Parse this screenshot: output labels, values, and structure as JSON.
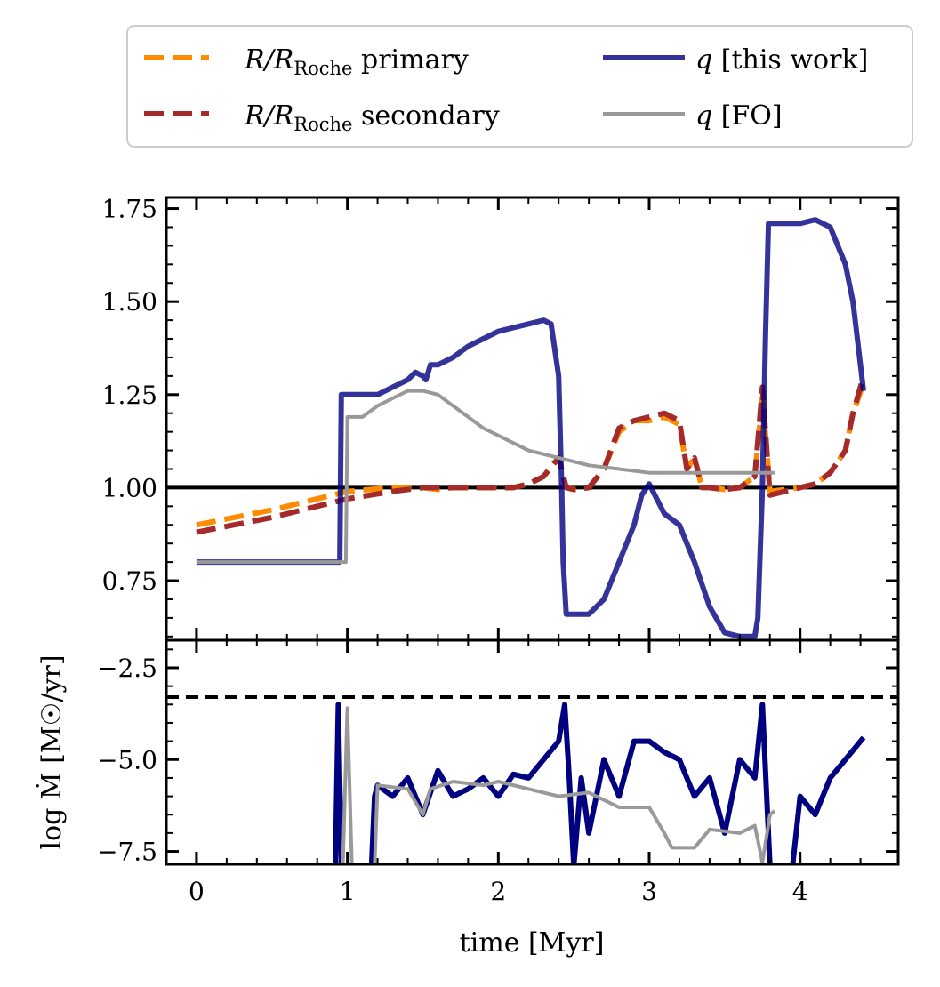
{
  "chart_data": [
    {
      "panel": "top",
      "type": "line",
      "xlim": [
        -0.2,
        4.65
      ],
      "ylim": [
        0.59,
        1.78
      ],
      "xticks": [
        0,
        1,
        2,
        3,
        4
      ],
      "yticks": [
        0.75,
        1.0,
        1.25,
        1.5,
        1.75
      ],
      "ytick_labels": [
        "0.75",
        "1.00",
        "1.25",
        "1.50",
        "1.75"
      ],
      "reference_line": {
        "y": 1.0,
        "color": "#000000",
        "style": "solid"
      },
      "series": [
        {
          "name": "R/R_Roche primary",
          "color": "#ff8c00",
          "style": "dashed",
          "points": [
            [
              0,
              0.9
            ],
            [
              0.5,
              0.94
            ],
            [
              1.0,
              0.99
            ],
            [
              1.3,
              1.0
            ],
            [
              1.5,
              1.0
            ],
            [
              1.6,
              0.995
            ],
            [
              1.7,
              1.0
            ],
            [
              1.9,
              1.0
            ],
            [
              2.0,
              1.0
            ],
            [
              2.1,
              1.0
            ],
            [
              2.2,
              1.01
            ],
            [
              2.3,
              1.03
            ],
            [
              2.4,
              1.08
            ],
            [
              2.45,
              1.0
            ],
            [
              2.5,
              0.995
            ],
            [
              2.6,
              1.0
            ],
            [
              2.7,
              1.05
            ],
            [
              2.8,
              1.15
            ],
            [
              2.9,
              1.18
            ],
            [
              3.0,
              1.18
            ],
            [
              3.1,
              1.19
            ],
            [
              3.2,
              1.17
            ],
            [
              3.25,
              1.05
            ],
            [
              3.3,
              1.08
            ],
            [
              3.35,
              1.0
            ],
            [
              3.4,
              1.0
            ],
            [
              3.5,
              0.995
            ],
            [
              3.6,
              1.0
            ],
            [
              3.7,
              1.03
            ],
            [
              3.75,
              1.25
            ],
            [
              3.8,
              0.99
            ],
            [
              4.0,
              1.0
            ],
            [
              4.1,
              1.01
            ],
            [
              4.2,
              1.04
            ],
            [
              4.3,
              1.1
            ],
            [
              4.35,
              1.2
            ],
            [
              4.42,
              1.28
            ]
          ]
        },
        {
          "name": "R/R_Roche secondary",
          "color": "#a52a2a",
          "style": "dashed",
          "points": [
            [
              0,
              0.88
            ],
            [
              0.5,
              0.92
            ],
            [
              1.0,
              0.97
            ],
            [
              1.3,
              0.99
            ],
            [
              1.5,
              1.0
            ],
            [
              1.6,
              1.0
            ],
            [
              1.7,
              1.0
            ],
            [
              1.9,
              1.0
            ],
            [
              2.0,
              1.0
            ],
            [
              2.1,
              1.0
            ],
            [
              2.2,
              1.01
            ],
            [
              2.3,
              1.03
            ],
            [
              2.4,
              1.08
            ],
            [
              2.45,
              1.0
            ],
            [
              2.5,
              0.995
            ],
            [
              2.6,
              1.0
            ],
            [
              2.7,
              1.05
            ],
            [
              2.8,
              1.16
            ],
            [
              2.9,
              1.18
            ],
            [
              3.0,
              1.19
            ],
            [
              3.1,
              1.2
            ],
            [
              3.2,
              1.18
            ],
            [
              3.25,
              1.05
            ],
            [
              3.3,
              1.08
            ],
            [
              3.35,
              1.0
            ],
            [
              3.4,
              1.0
            ],
            [
              3.5,
              0.995
            ],
            [
              3.6,
              1.0
            ],
            [
              3.7,
              1.03
            ],
            [
              3.75,
              1.27
            ],
            [
              3.8,
              0.98
            ],
            [
              4.0,
              1.0
            ],
            [
              4.1,
              1.01
            ],
            [
              4.2,
              1.04
            ],
            [
              4.3,
              1.1
            ],
            [
              4.35,
              1.2
            ],
            [
              4.42,
              1.3
            ]
          ]
        },
        {
          "name": "q [this work]",
          "color": "#000080",
          "style": "solid",
          "points": [
            [
              0,
              0.8
            ],
            [
              0.95,
              0.8
            ],
            [
              0.96,
              1.25
            ],
            [
              1.2,
              1.25
            ],
            [
              1.3,
              1.27
            ],
            [
              1.4,
              1.29
            ],
            [
              1.45,
              1.31
            ],
            [
              1.5,
              1.3
            ],
            [
              1.52,
              1.29
            ],
            [
              1.55,
              1.33
            ],
            [
              1.6,
              1.33
            ],
            [
              1.7,
              1.35
            ],
            [
              1.8,
              1.38
            ],
            [
              1.9,
              1.4
            ],
            [
              2.0,
              1.42
            ],
            [
              2.1,
              1.43
            ],
            [
              2.2,
              1.44
            ],
            [
              2.3,
              1.45
            ],
            [
              2.35,
              1.44
            ],
            [
              2.4,
              1.3
            ],
            [
              2.42,
              1.0
            ],
            [
              2.43,
              0.8
            ],
            [
              2.45,
              0.66
            ],
            [
              2.6,
              0.66
            ],
            [
              2.7,
              0.7
            ],
            [
              2.8,
              0.8
            ],
            [
              2.9,
              0.9
            ],
            [
              2.95,
              0.98
            ],
            [
              3.0,
              1.01
            ],
            [
              3.05,
              0.97
            ],
            [
              3.1,
              0.93
            ],
            [
              3.2,
              0.9
            ],
            [
              3.3,
              0.8
            ],
            [
              3.4,
              0.68
            ],
            [
              3.5,
              0.61
            ],
            [
              3.6,
              0.6
            ],
            [
              3.7,
              0.6
            ],
            [
              3.72,
              0.65
            ],
            [
              3.75,
              1.0
            ],
            [
              3.77,
              1.4
            ],
            [
              3.79,
              1.71
            ],
            [
              4.0,
              1.71
            ],
            [
              4.1,
              1.72
            ],
            [
              4.2,
              1.7
            ],
            [
              4.3,
              1.6
            ],
            [
              4.35,
              1.5
            ],
            [
              4.42,
              1.26
            ]
          ]
        },
        {
          "name": "q [FO]",
          "color": "#999999",
          "style": "solid",
          "points": [
            [
              0,
              0.8
            ],
            [
              0.99,
              0.8
            ],
            [
              1.0,
              1.19
            ],
            [
              1.1,
              1.19
            ],
            [
              1.2,
              1.22
            ],
            [
              1.3,
              1.24
            ],
            [
              1.4,
              1.26
            ],
            [
              1.5,
              1.26
            ],
            [
              1.6,
              1.25
            ],
            [
              1.7,
              1.22
            ],
            [
              1.8,
              1.19
            ],
            [
              1.9,
              1.16
            ],
            [
              2.0,
              1.14
            ],
            [
              2.1,
              1.12
            ],
            [
              2.2,
              1.1
            ],
            [
              2.4,
              1.08
            ],
            [
              2.6,
              1.06
            ],
            [
              2.8,
              1.05
            ],
            [
              3.0,
              1.04
            ],
            [
              3.2,
              1.04
            ],
            [
              3.5,
              1.04
            ],
            [
              3.83,
              1.04
            ]
          ]
        }
      ]
    },
    {
      "panel": "bottom",
      "type": "line",
      "xlim": [
        -0.2,
        4.65
      ],
      "ylim": [
        -7.85,
        -1.75
      ],
      "xticks": [
        0,
        1,
        2,
        3,
        4
      ],
      "xtick_labels": [
        "0",
        "1",
        "2",
        "3",
        "4"
      ],
      "yticks": [
        -2.5,
        -5.0,
        -7.5
      ],
      "ytick_labels": [
        "−2.5",
        "−5.0",
        "−7.5"
      ],
      "xlabel": "time [Myr]",
      "ylabel": "log Ṁ [M☉/yr]",
      "reference_line": {
        "y": -3.3,
        "color": "#000000",
        "style": "dashed"
      },
      "series": [
        {
          "name": "log Mdot [this work]",
          "color": "#000080",
          "style": "solid",
          "points": [
            [
              0.92,
              -7.9
            ],
            [
              0.94,
              -3.5
            ],
            [
              0.96,
              -7.9
            ],
            [
              1.16,
              -7.9
            ],
            [
              1.18,
              -6.0
            ],
            [
              1.2,
              -5.7
            ],
            [
              1.3,
              -6.0
            ],
            [
              1.4,
              -5.5
            ],
            [
              1.5,
              -6.5
            ],
            [
              1.6,
              -5.3
            ],
            [
              1.7,
              -6.0
            ],
            [
              1.8,
              -5.8
            ],
            [
              1.9,
              -5.5
            ],
            [
              2.0,
              -6.0
            ],
            [
              2.1,
              -5.4
            ],
            [
              2.2,
              -5.5
            ],
            [
              2.3,
              -5.0
            ],
            [
              2.4,
              -4.5
            ],
            [
              2.44,
              -3.5
            ],
            [
              2.47,
              -5.5
            ],
            [
              2.5,
              -7.9
            ],
            [
              2.55,
              -5.5
            ],
            [
              2.6,
              -7.0
            ],
            [
              2.7,
              -5.0
            ],
            [
              2.8,
              -6.0
            ],
            [
              2.9,
              -4.5
            ],
            [
              3.0,
              -4.5
            ],
            [
              3.1,
              -4.8
            ],
            [
              3.2,
              -5.0
            ],
            [
              3.3,
              -6.0
            ],
            [
              3.4,
              -5.5
            ],
            [
              3.5,
              -7.0
            ],
            [
              3.6,
              -5.0
            ],
            [
              3.7,
              -5.5
            ],
            [
              3.75,
              -3.5
            ],
            [
              3.8,
              -7.9
            ],
            [
              3.95,
              -7.9
            ],
            [
              4.0,
              -6.0
            ],
            [
              4.1,
              -6.5
            ],
            [
              4.2,
              -5.5
            ],
            [
              4.3,
              -5.0
            ],
            [
              4.42,
              -4.4
            ]
          ]
        },
        {
          "name": "log Mdot [FO]",
          "color": "#999999",
          "style": "solid",
          "points": [
            [
              0.97,
              -7.9
            ],
            [
              1.0,
              -3.6
            ],
            [
              1.03,
              -7.9
            ],
            [
              1.18,
              -7.9
            ],
            [
              1.2,
              -5.7
            ],
            [
              1.4,
              -5.8
            ],
            [
              1.5,
              -6.5
            ],
            [
              1.55,
              -5.8
            ],
            [
              1.7,
              -5.6
            ],
            [
              1.9,
              -5.7
            ],
            [
              2.0,
              -5.6
            ],
            [
              2.2,
              -5.8
            ],
            [
              2.4,
              -6.0
            ],
            [
              2.6,
              -5.9
            ],
            [
              2.8,
              -6.3
            ],
            [
              3.0,
              -6.3
            ],
            [
              3.1,
              -7.0
            ],
            [
              3.15,
              -7.4
            ],
            [
              3.3,
              -7.4
            ],
            [
              3.4,
              -6.9
            ],
            [
              3.6,
              -7.0
            ],
            [
              3.7,
              -6.8
            ],
            [
              3.75,
              -7.8
            ],
            [
              3.8,
              -6.5
            ],
            [
              3.83,
              -6.4
            ]
          ]
        }
      ]
    }
  ],
  "legend": {
    "position": "top",
    "entries": [
      {
        "id": "primary",
        "prefix": "R/R",
        "subscript": "Roche",
        "suffix": " primary",
        "color": "#ff8c00",
        "style": "dashed"
      },
      {
        "id": "secondary",
        "prefix": "R/R",
        "subscript": "Roche",
        "suffix": " secondary",
        "color": "#a52a2a",
        "style": "dashed"
      },
      {
        "id": "q-this",
        "prefix": "q",
        "subscript": "",
        "suffix": " [this work]",
        "color": "#000080",
        "style": "solid"
      },
      {
        "id": "q-fo",
        "prefix": "q",
        "subscript": "",
        "suffix": " [FO]",
        "color": "#999999",
        "style": "solid"
      }
    ]
  }
}
